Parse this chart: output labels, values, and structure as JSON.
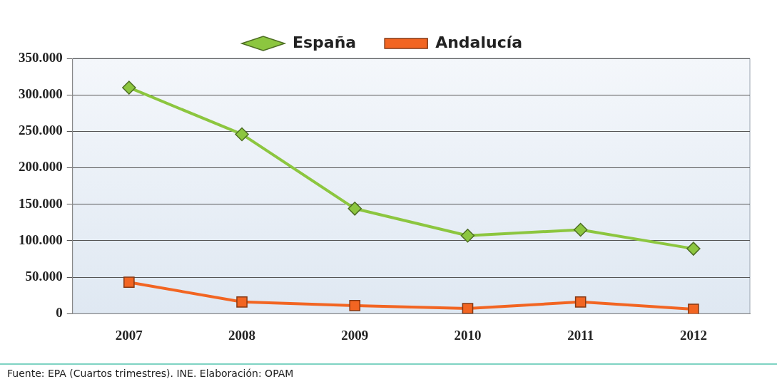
{
  "chart_data": {
    "type": "line",
    "categories": [
      "2007",
      "2008",
      "2009",
      "2010",
      "2011",
      "2012"
    ],
    "series": [
      {
        "name": "España",
        "color": "#8cc63f",
        "marker": "diamond",
        "values": [
          310000,
          246000,
          144000,
          107000,
          115000,
          89000
        ]
      },
      {
        "name": "Andalucía",
        "color": "#f26522",
        "marker": "square",
        "values": [
          43000,
          16000,
          11000,
          7000,
          16000,
          6000
        ]
      }
    ],
    "ylim": [
      0,
      350000
    ],
    "yticks": [
      {
        "value": 0,
        "label": "0"
      },
      {
        "value": 50000,
        "label": "50.000"
      },
      {
        "value": 100000,
        "label": "100.000"
      },
      {
        "value": 150000,
        "label": "150.000"
      },
      {
        "value": 200000,
        "label": "200.000"
      },
      {
        "value": 250000,
        "label": "250.000"
      },
      {
        "value": 300000,
        "label": "300.000"
      },
      {
        "value": 350000,
        "label": "350.000"
      }
    ],
    "grid": "y",
    "legend": "top",
    "line_style": "solid",
    "annotations": [
      "Fuente: EPA (Cuartos trimestres). INE. Elaboración: OPAM"
    ]
  }
}
